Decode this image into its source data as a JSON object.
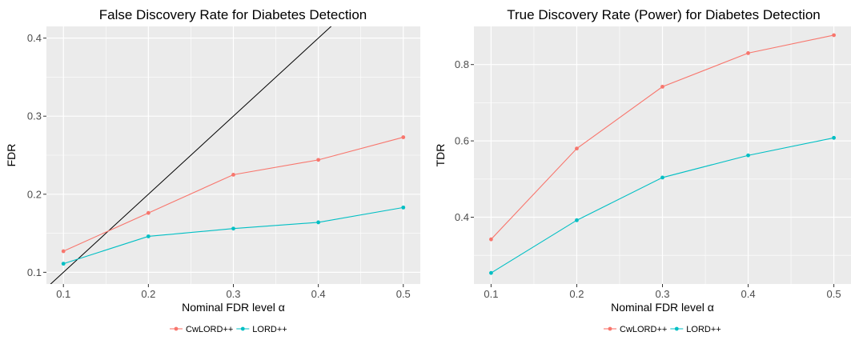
{
  "colors": {
    "cwlord": "#F8766D",
    "lord": "#00BFC4",
    "panel": "#EBEBEB",
    "grid": "#FFFFFF",
    "reference_line": "#000000"
  },
  "chart_data": [
    {
      "type": "line",
      "title": "False Discovery Rate for Diabetes Detection",
      "xlabel": "Nominal FDR level α",
      "ylabel": "FDR",
      "x": [
        0.1,
        0.2,
        0.3,
        0.4,
        0.5
      ],
      "x_tick_labels": [
        "0.1",
        "0.2",
        "0.3",
        "0.4",
        "0.5"
      ],
      "y_ticks": [
        0.1,
        0.2,
        0.3,
        0.4
      ],
      "y_tick_labels": [
        "0.1",
        "0.2",
        "0.3",
        "0.4"
      ],
      "xlim": [
        0.08,
        0.52
      ],
      "ylim": [
        0.085,
        0.415
      ],
      "reference_line": {
        "slope": 1,
        "intercept": 0
      },
      "series": [
        {
          "name": "CwLORD++",
          "color": "#F8766D",
          "values": [
            0.127,
            0.176,
            0.225,
            0.244,
            0.273
          ]
        },
        {
          "name": "LORD++",
          "color": "#00BFC4",
          "values": [
            0.111,
            0.146,
            0.156,
            0.164,
            0.183
          ]
        }
      ],
      "grid": true,
      "legend": "bottom"
    },
    {
      "type": "line",
      "title": "True Discovery Rate (Power) for Diabetes Detection",
      "xlabel": "Nominal FDR level α",
      "ylabel": "TDR",
      "x": [
        0.1,
        0.2,
        0.3,
        0.4,
        0.5
      ],
      "x_tick_labels": [
        "0.1",
        "0.2",
        "0.3",
        "0.4",
        "0.5"
      ],
      "y_ticks": [
        0.4,
        0.6,
        0.8
      ],
      "y_tick_labels": [
        "0.4",
        "0.6",
        "0.8"
      ],
      "xlim": [
        0.08,
        0.52
      ],
      "ylim": [
        0.225,
        0.9
      ],
      "series": [
        {
          "name": "CwLORD++",
          "color": "#F8766D",
          "values": [
            0.342,
            0.58,
            0.742,
            0.83,
            0.877
          ]
        },
        {
          "name": "LORD++",
          "color": "#00BFC4",
          "values": [
            0.254,
            0.392,
            0.504,
            0.562,
            0.608
          ]
        }
      ],
      "grid": true,
      "legend": "bottom"
    }
  ]
}
